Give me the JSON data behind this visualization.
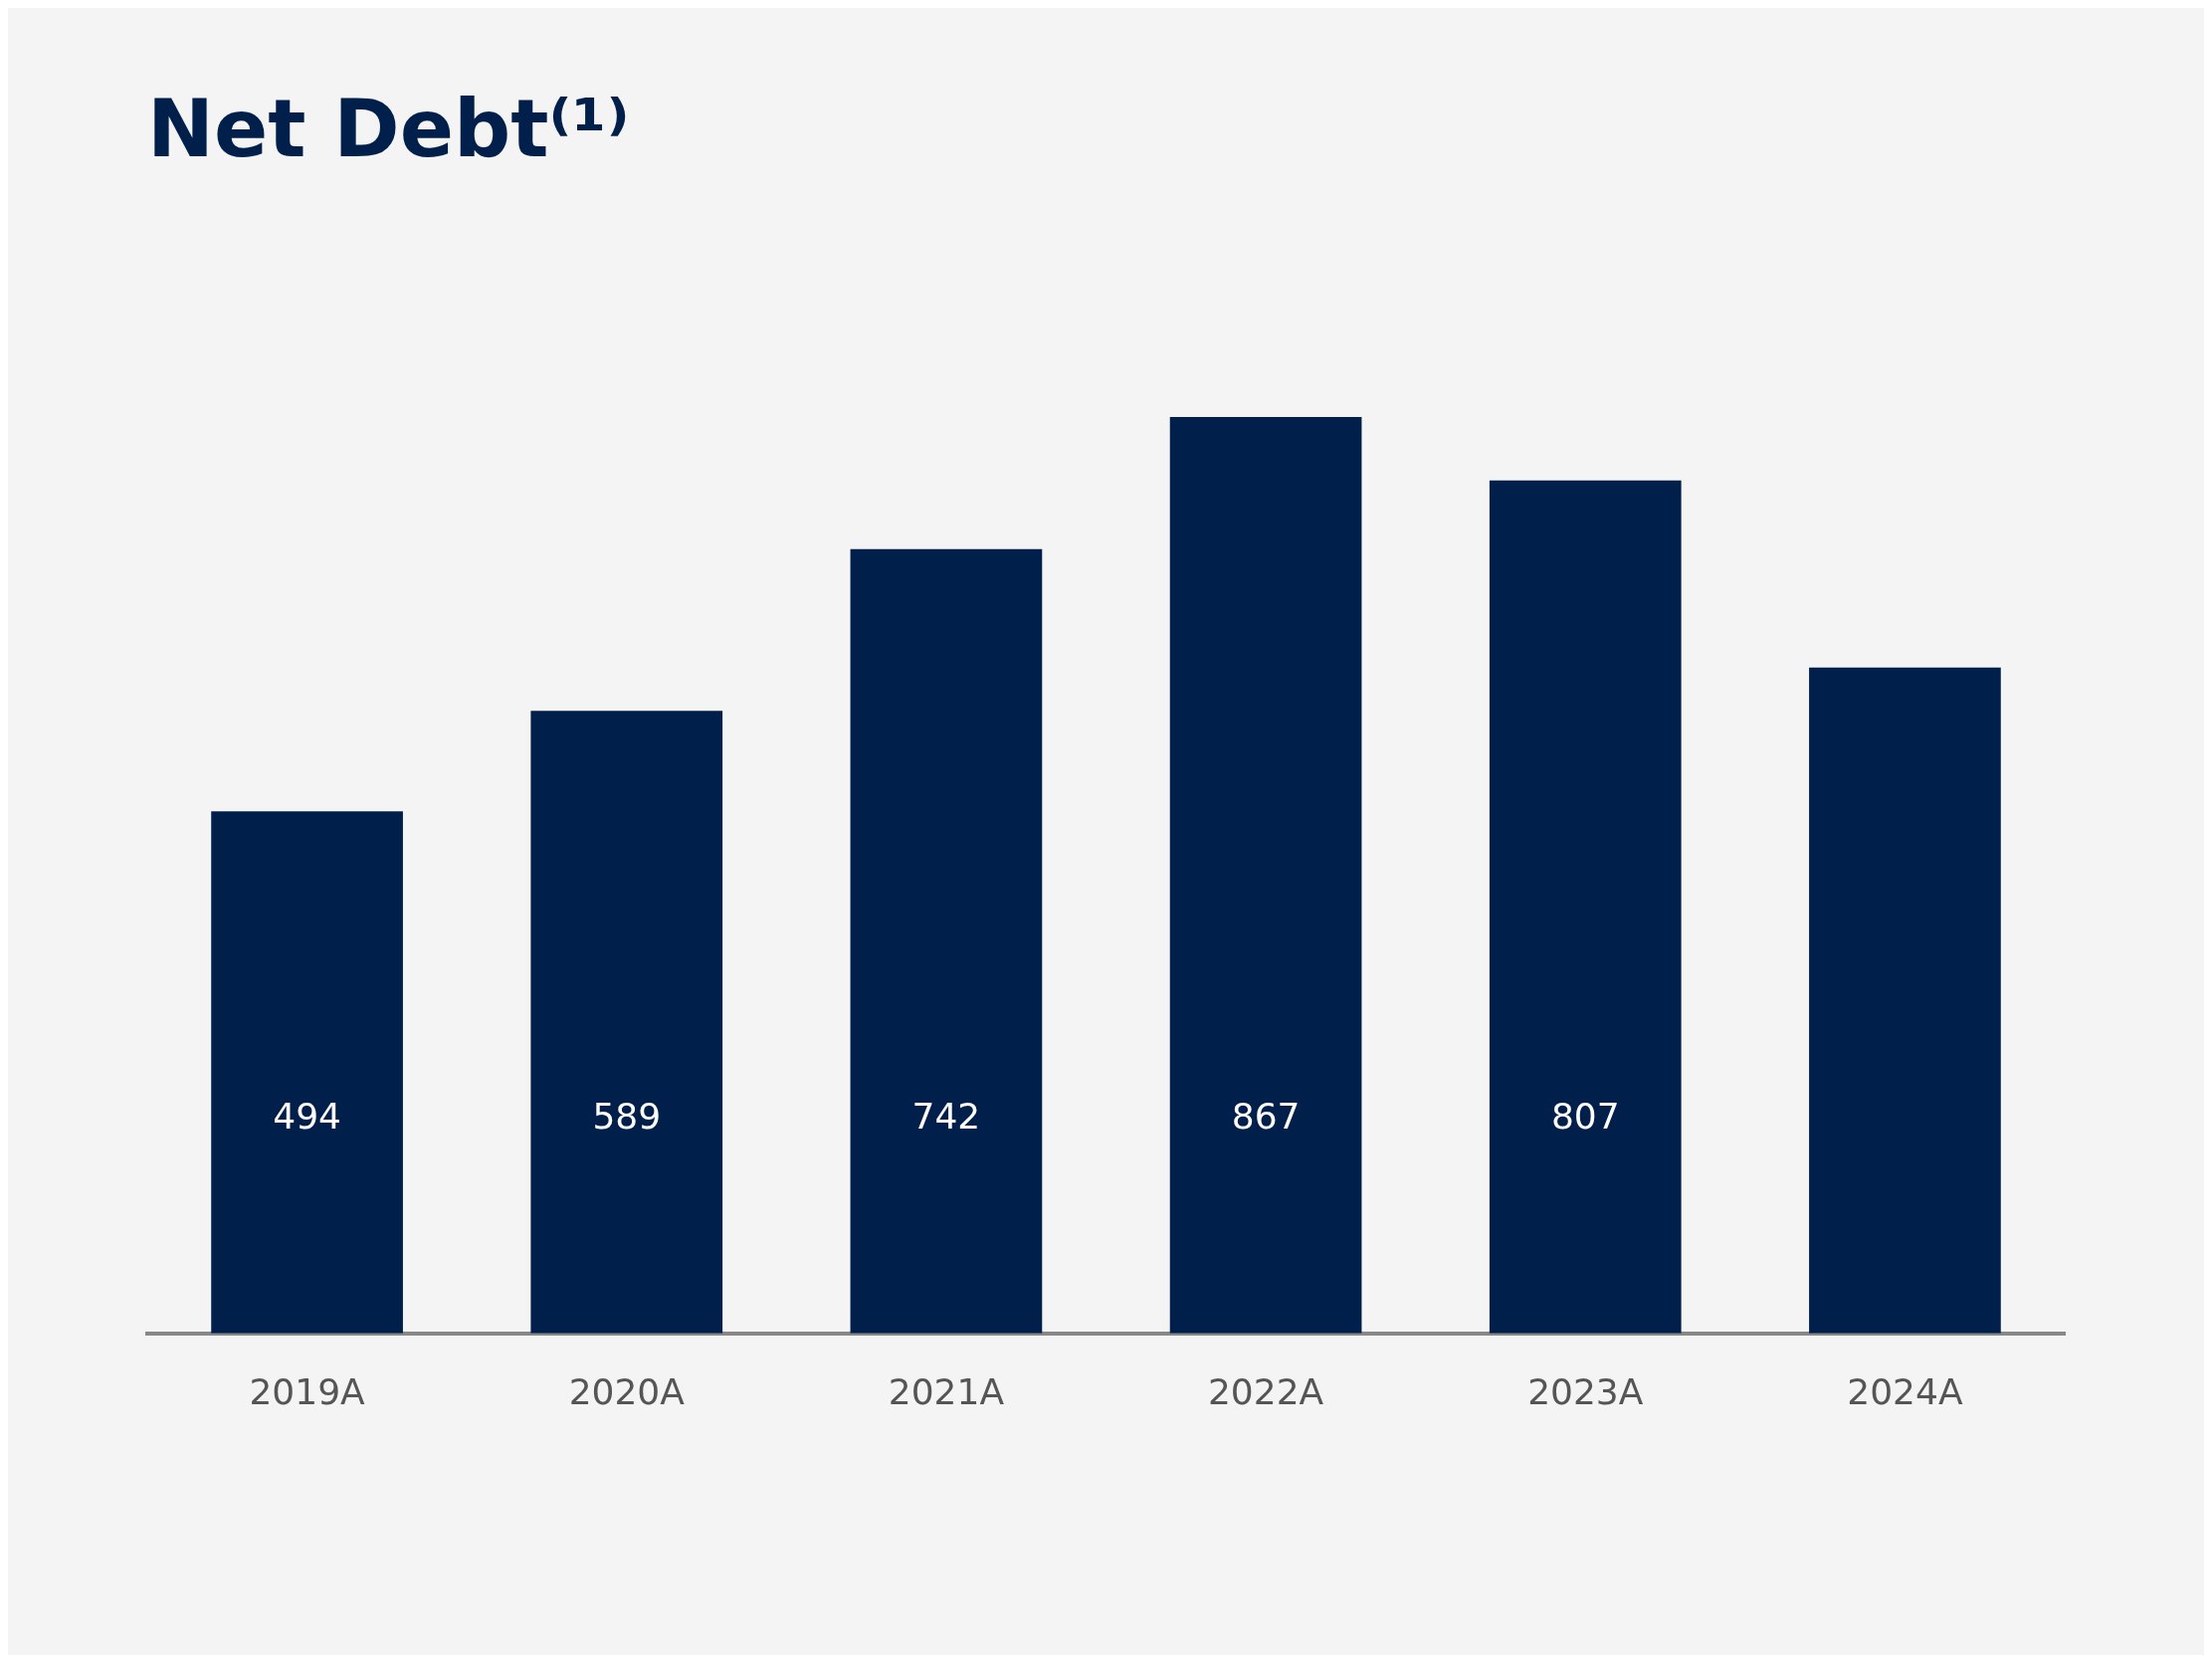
{
  "chart_data": {
    "type": "bar",
    "title": "Net Debt⁽¹⁾",
    "categories": [
      "2019A",
      "2020A",
      "2021A",
      "2022A",
      "2023A",
      "2024A"
    ],
    "values": [
      494,
      589,
      742,
      867,
      807,
      630
    ],
    "value_labels": [
      "494",
      "589",
      "742",
      "867",
      "807",
      null
    ],
    "color": "#001f4a",
    "tick_labels": "x",
    "grid": false,
    "legend": false
  }
}
